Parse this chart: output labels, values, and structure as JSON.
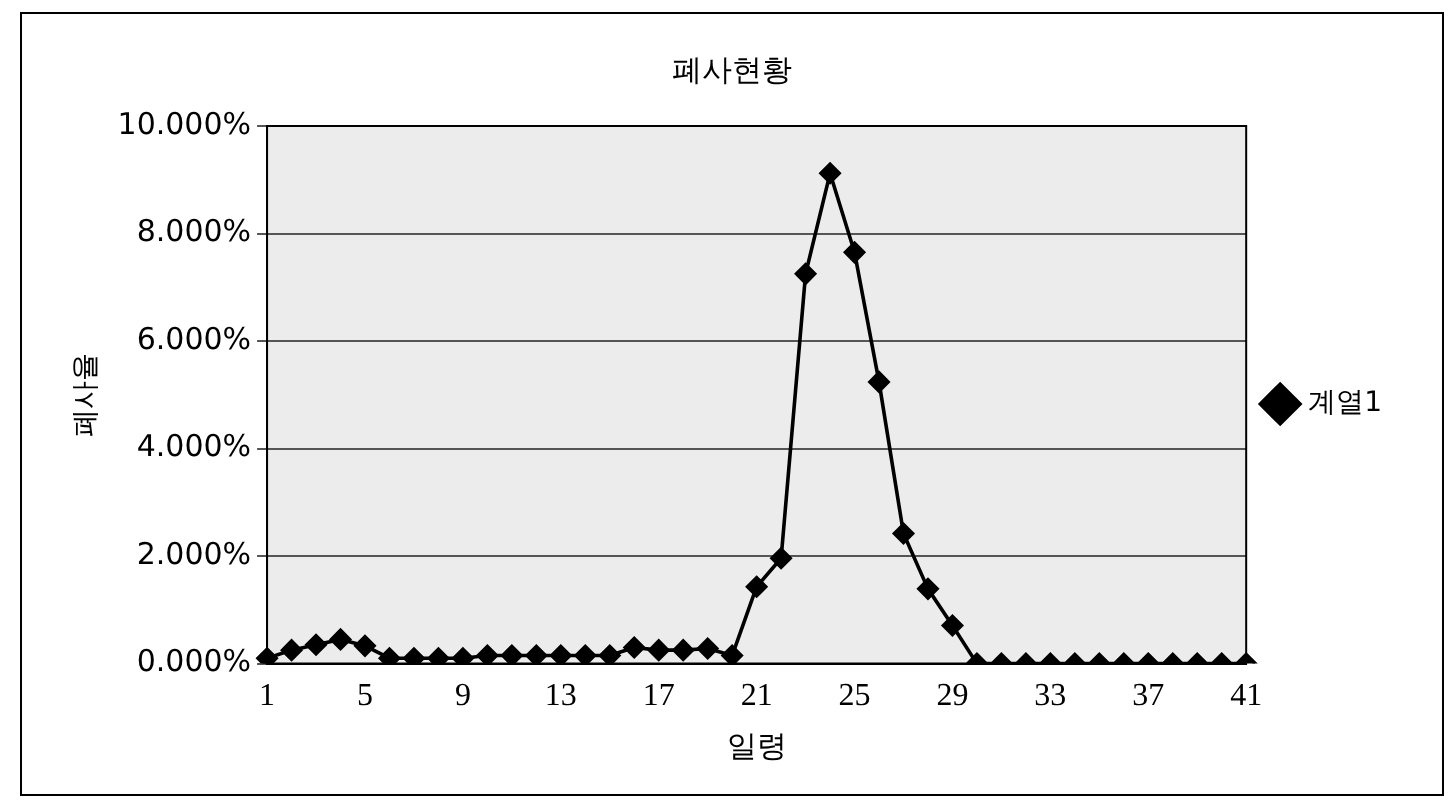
{
  "chart_data": {
    "type": "line",
    "title": "폐사현황",
    "xlabel": "일령",
    "ylabel": "폐사율",
    "categories": [
      "1",
      null,
      null,
      null,
      "5",
      null,
      null,
      null,
      "9",
      null,
      null,
      null,
      "13",
      null,
      null,
      null,
      "17",
      null,
      null,
      null,
      "21",
      null,
      null,
      null,
      "25",
      null,
      null,
      null,
      "29",
      null,
      null,
      null,
      "33",
      null,
      null,
      null,
      "37",
      null,
      null,
      null,
      "41"
    ],
    "series": [
      {
        "name": "계열1",
        "color": "#000000",
        "values": [
          0.1,
          0.25,
          0.35,
          0.45,
          0.33,
          0.1,
          0.1,
          0.1,
          0.1,
          0.15,
          0.15,
          0.15,
          0.15,
          0.15,
          0.15,
          0.3,
          0.25,
          0.25,
          0.28,
          0.15,
          1.43,
          1.96,
          7.25,
          9.12,
          7.65,
          5.24,
          2.42,
          1.39,
          0.71,
          0,
          0,
          0,
          0,
          0,
          0,
          0,
          0,
          0,
          0,
          0,
          0
        ]
      }
    ],
    "ylim": [
      0,
      10
    ],
    "yticks": [
      {
        "value": 0,
        "label": "0.000%"
      },
      {
        "value": 2,
        "label": "2.000%"
      },
      {
        "value": 4,
        "label": "4.000%"
      },
      {
        "value": 6,
        "label": "6.000%"
      },
      {
        "value": 8,
        "label": "8.000%"
      },
      {
        "value": 10,
        "label": "10.000%"
      }
    ],
    "grid": "y",
    "legend": "right",
    "marker": "diamond",
    "line_style": "solid"
  }
}
